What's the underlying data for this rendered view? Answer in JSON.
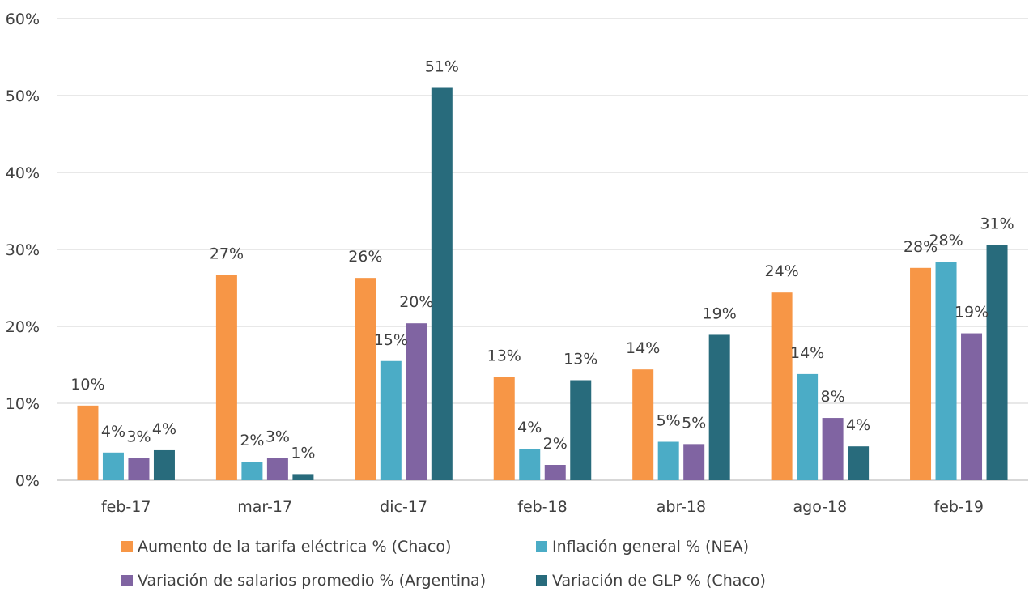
{
  "chart_data": {
    "type": "bar",
    "categories": [
      "feb-17",
      "mar-17",
      "dic-17",
      "feb-18",
      "abr-18",
      "ago-18",
      "feb-19"
    ],
    "series": [
      {
        "name": "Aumento de la tarifa eléctrica % (Chaco)",
        "color": "#F79646",
        "values": [
          9.7,
          26.7,
          26.3,
          13.4,
          14.4,
          24.4,
          27.6
        ],
        "labels": [
          "10%",
          "27%",
          "26%",
          "13%",
          "14%",
          "24%",
          "28%"
        ]
      },
      {
        "name": "Inflación general % (NEA)",
        "color": "#4BACC6",
        "values": [
          3.6,
          2.4,
          15.5,
          4.1,
          5.0,
          13.8,
          28.4
        ],
        "labels": [
          "4%",
          "2%",
          "15%",
          "4%",
          "5%",
          "14%",
          "28%"
        ]
      },
      {
        "name": "Variación de salarios promedio % (Argentina)",
        "color": "#8064A2",
        "values": [
          2.9,
          2.9,
          20.4,
          2.0,
          4.7,
          8.1,
          19.1
        ],
        "labels": [
          "3%",
          "3%",
          "20%",
          "2%",
          "5%",
          "8%",
          "19%"
        ]
      },
      {
        "name": "Variación de GLP % (Chaco)",
        "color": "#286B7C",
        "values": [
          3.9,
          0.8,
          51.0,
          13.0,
          18.9,
          4.4,
          30.6
        ],
        "labels": [
          "4%",
          "1%",
          "51%",
          "13%",
          "19%",
          "4%",
          "31%"
        ]
      }
    ],
    "ylim": [
      0,
      60
    ],
    "yticks": [
      "0%",
      "10%",
      "20%",
      "30%",
      "40%",
      "50%",
      "60%"
    ],
    "grid": true,
    "legend_position": "bottom"
  }
}
